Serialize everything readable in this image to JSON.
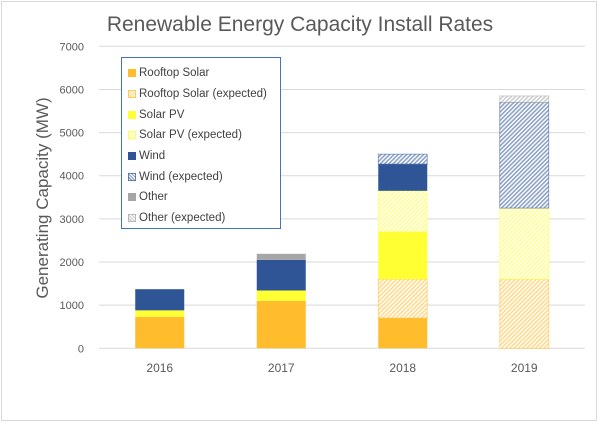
{
  "chart_data": {
    "type": "bar",
    "stacked": true,
    "title": "Renewable Energy Capacity Install Rates",
    "xlabel": "",
    "ylabel": "Generating Capacity (MW)",
    "ylim": [
      0,
      7000
    ],
    "yticks": [
      0,
      1000,
      2000,
      3000,
      4000,
      5000,
      6000,
      7000
    ],
    "grid": true,
    "legend_position": "top-left",
    "categories": [
      "2016",
      "2017",
      "2018",
      "2019"
    ],
    "series": [
      {
        "name": "Rooftop Solar",
        "color": "#ffbc2c",
        "pattern": "solid",
        "values": [
          730,
          1100,
          700,
          0
        ]
      },
      {
        "name": "Rooftop Solar (expected)",
        "color": "#ffbc2c",
        "pattern": "hatch",
        "values": [
          0,
          0,
          900,
          1600
        ]
      },
      {
        "name": "Solar PV",
        "color": "#ffff33",
        "pattern": "solid",
        "values": [
          150,
          240,
          1100,
          0
        ]
      },
      {
        "name": "Solar PV (expected)",
        "color": "#ffff33",
        "pattern": "hatch",
        "values": [
          0,
          0,
          950,
          1650
        ]
      },
      {
        "name": "Wind",
        "color": "#2f5597",
        "pattern": "solid",
        "values": [
          490,
          710,
          620,
          0
        ]
      },
      {
        "name": "Wind (expected)",
        "color": "#2f5597",
        "pattern": "hatch",
        "values": [
          0,
          0,
          230,
          2450
        ]
      },
      {
        "name": "Other",
        "color": "#a6a6a6",
        "pattern": "solid",
        "values": [
          0,
          140,
          0,
          0
        ]
      },
      {
        "name": "Other (expected)",
        "color": "#a6a6a6",
        "pattern": "hatch",
        "values": [
          0,
          0,
          0,
          150
        ]
      }
    ]
  }
}
